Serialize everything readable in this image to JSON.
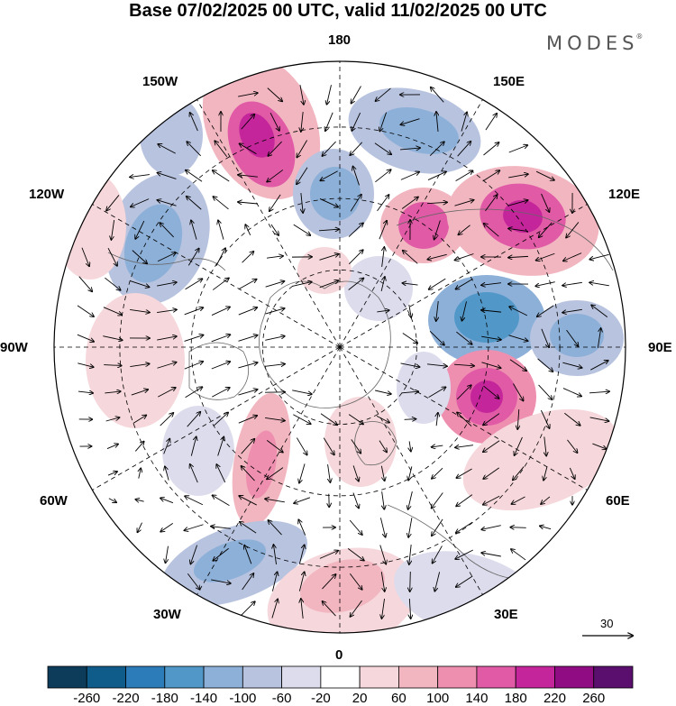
{
  "title": "Base 07/02/2025 00 UTC, valid 11/02/2025 00 UTC",
  "brand": {
    "text": "MODES",
    "mark": "®"
  },
  "map": {
    "projection": "north-polar-stereographic",
    "center_pole": "North Pole",
    "longitude_labels": {
      "top": "180",
      "upper_right": "150E",
      "right_upper": "120E",
      "right": "90E",
      "right_lower": "60E",
      "lower_right": "30E",
      "bottom": "0",
      "lower_left": "30W",
      "left_lower": "60W",
      "left": "90W",
      "left_upper": "120W",
      "upper_left": "150W"
    },
    "graticule": "dashed",
    "coastlines": true,
    "wind_vectors": true,
    "reference_vector": {
      "label": "30"
    }
  },
  "colorbar": {
    "ticks": [
      "-260",
      "-220",
      "-180",
      "-140",
      "-100",
      "-60",
      "-20",
      "20",
      "60",
      "100",
      "140",
      "180",
      "220",
      "260"
    ],
    "colors": [
      "#0d3b5a",
      "#0f5b8a",
      "#2b7cb8",
      "#5198c9",
      "#8db0d8",
      "#b8c3df",
      "#dcdced",
      "#ffffff",
      "#f6d7db",
      "#f2b6c0",
      "#ef8fb0",
      "#e15aa6",
      "#c4259a",
      "#8f0c82",
      "#5a0f6e"
    ]
  }
}
